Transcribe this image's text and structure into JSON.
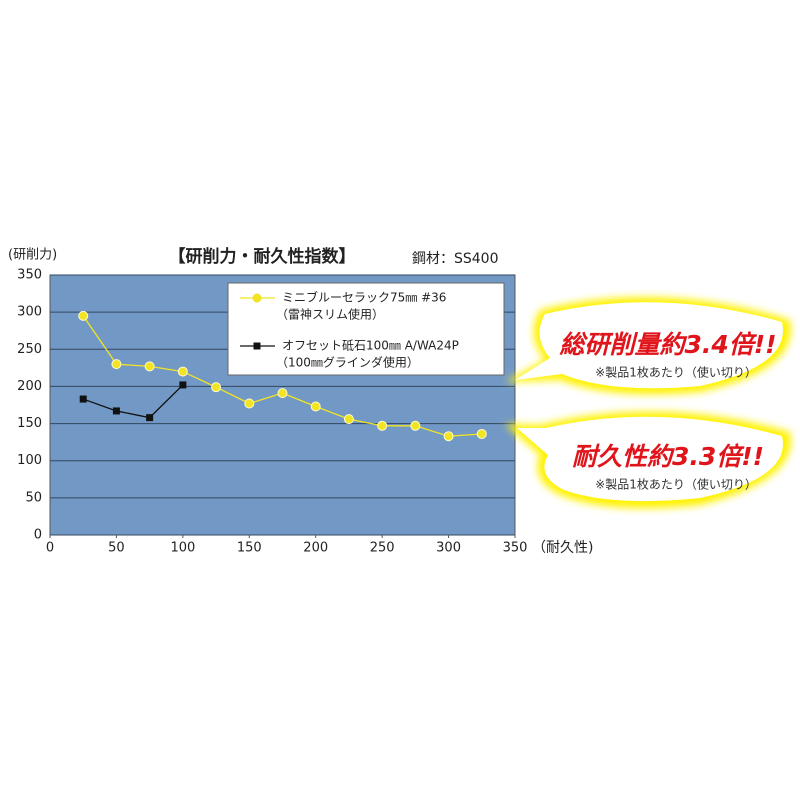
{
  "chart_data": {
    "type": "line",
    "title": "【研削力・耐久性指数】",
    "subtitle": "鋼材：SS400",
    "y_label": "(研削力)",
    "x_label": "（耐久性)",
    "xlim": [
      0,
      350
    ],
    "xticks": [
      0,
      50,
      100,
      150,
      200,
      250,
      300,
      350
    ],
    "ylim": [
      0,
      350
    ],
    "yticks": [
      0,
      50,
      100,
      150,
      200,
      250,
      300,
      350
    ],
    "grid": true,
    "series": [
      {
        "name": "ミニブルーセラック75㎜ #36",
        "name_note": "（雷神スリム使用）",
        "color": "#f2e423",
        "marker": "circle",
        "x": [
          25,
          50,
          75,
          100,
          125,
          150,
          175,
          200,
          225,
          250,
          275,
          300,
          325
        ],
        "values": [
          295,
          230,
          227,
          220,
          199,
          177,
          191,
          173,
          156,
          147,
          147,
          133,
          136
        ]
      },
      {
        "name": "オフセット砥石100㎜ A/WA24P",
        "name_note": "（100㎜グラインダ使用）",
        "color": "#111111",
        "marker": "square",
        "x": [
          25,
          50,
          75,
          100
        ],
        "values": [
          183,
          167,
          158,
          202
        ]
      }
    ],
    "annotations": [
      {
        "text": "総研削量約3.4倍!!",
        "note": "※製品1枚あたり（使い切り）"
      },
      {
        "text": "耐久性約3.3倍!!",
        "note": "※製品1枚あたり（使い切り）"
      }
    ]
  }
}
